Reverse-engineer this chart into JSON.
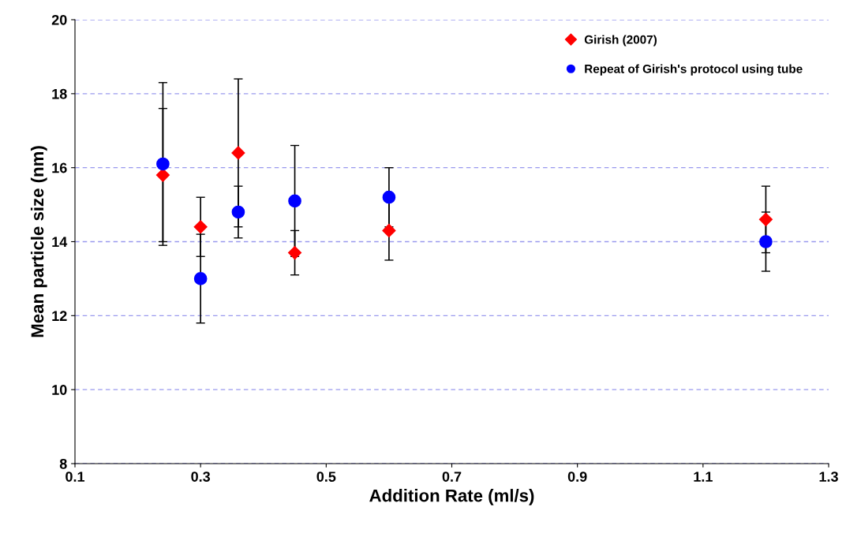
{
  "chart_data": {
    "type": "scatter",
    "xlabel": "Addition Rate (ml/s)",
    "ylabel": "Mean particle size (nm)",
    "xlim": [
      0.1,
      1.3
    ],
    "xticks": [
      0.1,
      0.3,
      0.5,
      0.7,
      0.9,
      1.1,
      1.3
    ],
    "ylim": [
      8,
      20
    ],
    "yticks": [
      8,
      10,
      12,
      14,
      16,
      18,
      20
    ],
    "grid": "y",
    "legend": "top right",
    "series": [
      {
        "name": "Girish (2007)",
        "color": "#ff0000",
        "marker": "diamond",
        "x": [
          0.24,
          0.3,
          0.36,
          0.45,
          0.6,
          1.2
        ],
        "values": [
          15.8,
          14.4,
          16.4,
          13.7,
          14.3,
          14.6
        ],
        "errors": [
          1.8,
          0.8,
          2.0,
          0.6,
          0.8,
          0.9
        ]
      },
      {
        "name": "Repeat of Girish's protocol using tube",
        "color": "#0000ff",
        "marker": "circle",
        "x": [
          0.24,
          0.3,
          0.36,
          0.45,
          0.6,
          1.2
        ],
        "values": [
          16.1,
          13.0,
          14.8,
          15.1,
          15.2,
          14.0
        ],
        "errors": [
          2.2,
          1.2,
          0.7,
          1.5,
          0.8,
          0.8
        ]
      }
    ]
  }
}
